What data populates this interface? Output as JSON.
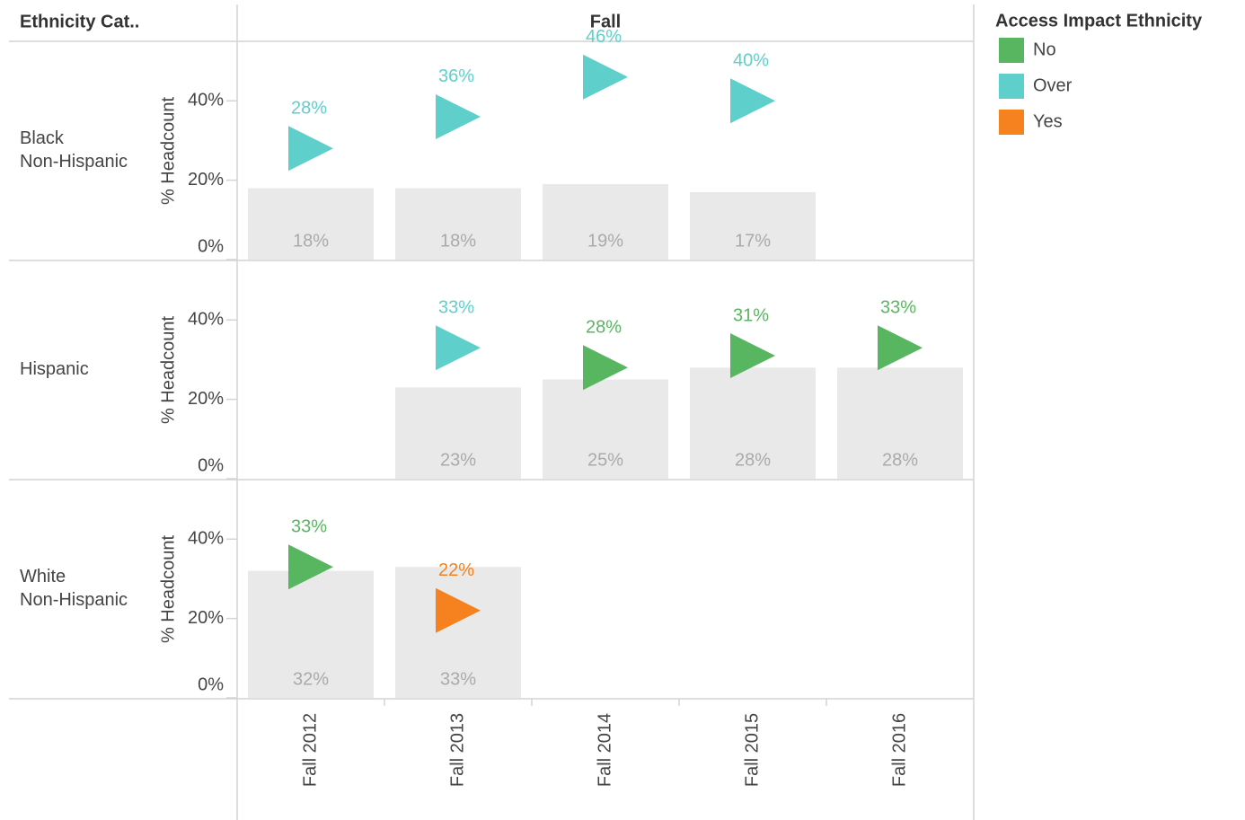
{
  "chart_data": {
    "type": "bar_marker",
    "row_header": "Ethnicity Cat..",
    "column_header": "Fall",
    "y_label": "% Headcount",
    "categories": [
      "Fall 2012",
      "Fall 2013",
      "Fall 2014",
      "Fall 2015",
      "Fall 2016"
    ],
    "ylim": [
      0,
      55
    ],
    "yticks": [
      {
        "value": 0,
        "label": "0%"
      },
      {
        "value": 20,
        "label": "20%"
      },
      {
        "value": 40,
        "label": "40%"
      }
    ],
    "bar_color": "#e9e9e9",
    "legend_title": "Access Impact Ethnicity",
    "legend": [
      {
        "name": "No",
        "color": "#59b660"
      },
      {
        "name": "Over",
        "color": "#5fcfcb"
      },
      {
        "name": "Yes",
        "color": "#f5821f"
      }
    ],
    "facets": [
      {
        "label": [
          "Black",
          "Non-Hispanic"
        ],
        "bar_values": [
          18,
          18,
          19,
          17,
          null
        ],
        "bar_value_labels": [
          "18%",
          "18%",
          "19%",
          "17%",
          null
        ],
        "marker_values": [
          28,
          36,
          46,
          40,
          null
        ],
        "marker_value_labels": [
          "28%",
          "36%",
          "46%",
          "40%",
          null
        ],
        "marker_status": [
          "Over",
          "Over",
          "Over",
          "Over",
          null
        ]
      },
      {
        "label": [
          "Hispanic"
        ],
        "bar_values": [
          null,
          23,
          25,
          28,
          28
        ],
        "bar_value_labels": [
          null,
          "23%",
          "25%",
          "28%",
          "28%"
        ],
        "marker_values": [
          null,
          33,
          28,
          31,
          33
        ],
        "marker_value_labels": [
          null,
          "33%",
          "28%",
          "31%",
          "33%"
        ],
        "marker_status": [
          null,
          "Over",
          "No",
          "No",
          "No"
        ]
      },
      {
        "label": [
          "White",
          "Non-Hispanic"
        ],
        "bar_values": [
          32,
          33,
          null,
          null,
          null
        ],
        "bar_value_labels": [
          "32%",
          "33%",
          null,
          null,
          null
        ],
        "marker_values": [
          33,
          22,
          null,
          null,
          null
        ],
        "marker_value_labels": [
          "33%",
          "22%",
          null,
          null,
          null
        ],
        "marker_status": [
          "No",
          "Yes",
          null,
          null,
          null
        ]
      }
    ]
  }
}
